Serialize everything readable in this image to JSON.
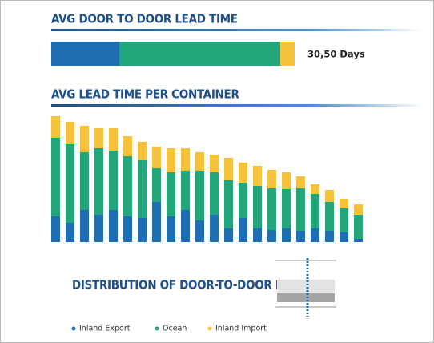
{
  "chart_data": [
    {
      "type": "hbar-stacked",
      "title": "AVG DOOR TO DOOR LEAD TIME",
      "annotation": "30,50 Days",
      "xlim": [
        0,
        30.5
      ],
      "series": [
        {
          "color": "#1f6db3",
          "values": [
            8.6
          ]
        },
        {
          "color": "#23a67c",
          "values": [
            20.1
          ]
        },
        {
          "color": "#f5c33b",
          "values": [
            1.8
          ]
        }
      ]
    },
    {
      "type": "bar-stacked",
      "title": "AVG LEAD TIME PER CONTAINER",
      "ylim": [
        0,
        160
      ],
      "series": [
        {
          "name": "Inland Export",
          "color": "#1f6db3",
          "values": [
            32,
            24,
            40,
            34,
            40,
            32,
            30,
            50,
            32,
            40,
            27,
            34,
            17,
            30,
            17,
            15,
            17,
            14,
            17,
            14,
            12,
            4
          ]
        },
        {
          "name": "Ocean",
          "color": "#23a67c",
          "values": [
            98,
            98,
            72,
            83,
            74,
            75,
            72,
            42,
            55,
            49,
            62,
            53,
            60,
            44,
            53,
            52,
            49,
            53,
            43,
            36,
            30,
            30
          ]
        },
        {
          "name": "Inland Import",
          "color": "#f5c33b",
          "values": [
            27,
            28,
            33,
            25,
            28,
            25,
            23,
            27,
            30,
            28,
            23,
            22,
            28,
            25,
            25,
            23,
            21,
            15,
            12,
            15,
            12,
            13
          ]
        }
      ]
    }
  ],
  "distribution": {
    "title": "DISTRIBUTION OF DOOR-TO-DOOR LT"
  }
}
